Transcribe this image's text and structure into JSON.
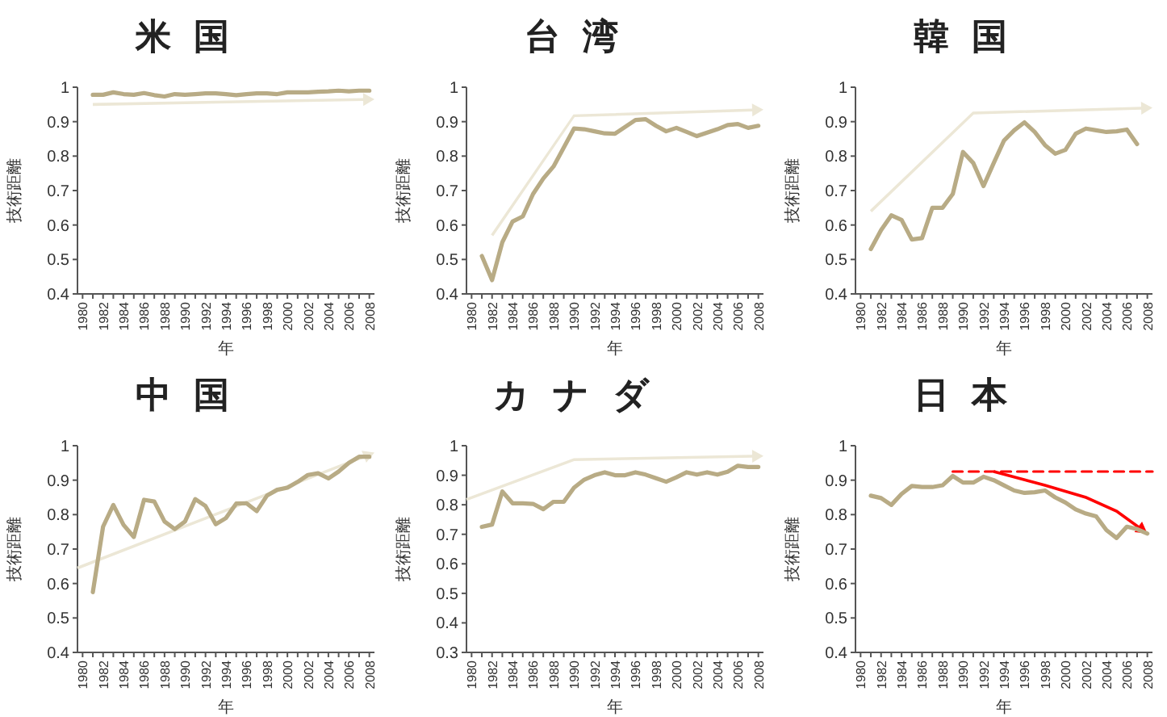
{
  "chart_data": [
    {
      "type": "line",
      "title": "米国",
      "xlabel": "年",
      "ylabel": "技術距離",
      "xlim": [
        1979.5,
        2008.5
      ],
      "ylim": [
        0.4,
        1
      ],
      "yticks": [
        0.4,
        0.5,
        0.6,
        0.7,
        0.8,
        0.9,
        1
      ],
      "xticks": [
        1980,
        {
          "value": 1981,
          "label": null
        },
        1982,
        {
          "value": 1983,
          "label": null
        },
        1984,
        {
          "value": 1985,
          "label": null
        },
        1986,
        {
          "value": 1987,
          "label": null
        },
        1988,
        {
          "value": 1989,
          "label": null
        },
        1990,
        {
          "value": 1991,
          "label": null
        },
        1992,
        {
          "value": 1993,
          "label": null
        },
        1994,
        {
          "value": 1995,
          "label": null
        },
        1996,
        {
          "value": 1997,
          "label": null
        },
        1998,
        {
          "value": 1999,
          "label": null
        },
        2000,
        {
          "value": 2001,
          "label": null
        },
        2002,
        {
          "value": 2003,
          "label": null
        },
        2004,
        {
          "value": 2005,
          "label": null
        },
        2006,
        {
          "value": 2007,
          "label": null
        },
        2008
      ],
      "x": [
        1981,
        1982,
        1983,
        1984,
        1985,
        1986,
        1987,
        1988,
        1989,
        1990,
        1991,
        1992,
        1993,
        1994,
        1995,
        1996,
        1997,
        1998,
        1999,
        2000,
        2001,
        2002,
        2003,
        2004,
        2005,
        2006,
        2007,
        2008
      ],
      "series": [
        {
          "color": "#b8ab85",
          "values": [
            0.978,
            0.978,
            0.985,
            0.98,
            0.978,
            0.983,
            0.977,
            0.973,
            0.98,
            0.978,
            0.98,
            0.982,
            0.982,
            0.98,
            0.977,
            0.98,
            0.982,
            0.982,
            0.98,
            0.985,
            0.985,
            0.985,
            0.987,
            0.988,
            0.99,
            0.988,
            0.99,
            0.99
          ]
        }
      ]
    },
    {
      "type": "line",
      "title": "台湾",
      "xlabel": "年",
      "ylabel": "技術距離",
      "xlim": [
        1979.5,
        2008.5
      ],
      "ylim": [
        0.4,
        1
      ],
      "yticks": [
        0.4,
        0.5,
        0.6,
        0.7,
        0.8,
        0.9,
        1
      ],
      "xticks": [
        1980,
        {
          "value": 1981,
          "label": null
        },
        1982,
        {
          "value": 1983,
          "label": null
        },
        1984,
        {
          "value": 1985,
          "label": null
        },
        1986,
        {
          "value": 1987,
          "label": null
        },
        1988,
        {
          "value": 1989,
          "label": null
        },
        1990,
        {
          "value": 1991,
          "label": null
        },
        1992,
        {
          "value": 1993,
          "label": null
        },
        1994,
        {
          "value": 1995,
          "label": null
        },
        1996,
        {
          "value": 1997,
          "label": null
        },
        1998,
        {
          "value": 1999,
          "label": null
        },
        2000,
        {
          "value": 2001,
          "label": null
        },
        2002,
        {
          "value": 2003,
          "label": null
        },
        2004,
        {
          "value": 2005,
          "label": null
        },
        2006,
        {
          "value": 2007,
          "label": null
        },
        2008
      ],
      "x": [
        1981,
        1982,
        1983,
        1984,
        1985,
        1986,
        1987,
        1988,
        1989,
        1990,
        1991,
        1992,
        1993,
        1994,
        1995,
        1996,
        1997,
        1998,
        1999,
        2000,
        2001,
        2002,
        2003,
        2004,
        2005,
        2006,
        2007,
        2008
      ],
      "series": [
        {
          "color": "#b8ab85",
          "values": [
            0.51,
            0.44,
            0.55,
            0.61,
            0.625,
            0.69,
            0.735,
            0.77,
            0.825,
            0.88,
            0.878,
            0.872,
            0.866,
            0.865,
            0.885,
            0.905,
            0.907,
            0.888,
            0.872,
            0.882,
            0.87,
            0.858,
            0.868,
            0.878,
            0.89,
            0.893,
            0.882,
            0.888
          ]
        }
      ]
    },
    {
      "type": "line",
      "title": "韓国",
      "xlabel": "年",
      "ylabel": "技術距離",
      "xlim": [
        1979.5,
        2008.5
      ],
      "ylim": [
        0.4,
        1
      ],
      "yticks": [
        0.4,
        0.5,
        0.6,
        0.7,
        0.8,
        0.9,
        1
      ],
      "xticks": [
        1980,
        {
          "value": 1981,
          "label": null
        },
        1982,
        {
          "value": 1983,
          "label": null
        },
        1984,
        {
          "value": 1985,
          "label": null
        },
        1986,
        {
          "value": 1987,
          "label": null
        },
        1988,
        {
          "value": 1989,
          "label": null
        },
        1990,
        {
          "value": 1991,
          "label": null
        },
        1992,
        {
          "value": 1993,
          "label": null
        },
        1994,
        {
          "value": 1995,
          "label": null
        },
        1996,
        {
          "value": 1997,
          "label": null
        },
        1998,
        {
          "value": 1999,
          "label": null
        },
        2000,
        {
          "value": 2001,
          "label": null
        },
        2002,
        {
          "value": 2003,
          "label": null
        },
        2004,
        {
          "value": 2005,
          "label": null
        },
        2006,
        {
          "value": 2007,
          "label": null
        },
        2008
      ],
      "x": [
        1981,
        1982,
        1983,
        1984,
        1985,
        1986,
        1987,
        1988,
        1989,
        1990,
        1991,
        1992,
        1993,
        1994,
        1995,
        1996,
        1997,
        1998,
        1999,
        2000,
        2001,
        2002,
        2003,
        2004,
        2005,
        2006,
        2007
      ],
      "series": [
        {
          "color": "#b8ab85",
          "values": [
            0.53,
            0.585,
            0.628,
            0.615,
            0.558,
            0.562,
            0.65,
            0.65,
            0.69,
            0.812,
            0.78,
            0.713,
            0.78,
            0.845,
            0.875,
            0.898,
            0.87,
            0.832,
            0.807,
            0.818,
            0.865,
            0.88,
            0.875,
            0.87,
            0.872,
            0.877,
            0.835
          ]
        }
      ]
    },
    {
      "type": "line",
      "title": "中国",
      "xlabel": "年",
      "ylabel": "技術距離",
      "xlim": [
        1979.5,
        2008.5
      ],
      "ylim": [
        0.4,
        1
      ],
      "yticks": [
        0.4,
        0.5,
        0.6,
        0.7,
        0.8,
        0.9,
        1
      ],
      "xticks": [
        1980,
        {
          "value": 1981,
          "label": null
        },
        1982,
        {
          "value": 1983,
          "label": null
        },
        1984,
        {
          "value": 1985,
          "label": null
        },
        1986,
        {
          "value": 1987,
          "label": null
        },
        1988,
        {
          "value": 1989,
          "label": null
        },
        1990,
        {
          "value": 1991,
          "label": null
        },
        1992,
        {
          "value": 1993,
          "label": null
        },
        1994,
        {
          "value": 1995,
          "label": null
        },
        1996,
        {
          "value": 1997,
          "label": null
        },
        1998,
        {
          "value": 1999,
          "label": null
        },
        2000,
        {
          "value": 2001,
          "label": null
        },
        2002,
        {
          "value": 2003,
          "label": null
        },
        2004,
        {
          "value": 2005,
          "label": null
        },
        2006,
        {
          "value": 2007,
          "label": null
        },
        2008
      ],
      "x": [
        1981,
        1982,
        1983,
        1984,
        1985,
        1986,
        1987,
        1988,
        1989,
        1990,
        1991,
        1992,
        1993,
        1994,
        1995,
        1996,
        1997,
        1998,
        1999,
        2000,
        2001,
        2002,
        2003,
        2004,
        2005,
        2006,
        2007,
        2008
      ],
      "series": [
        {
          "color": "#b8ab85",
          "values": [
            0.575,
            0.765,
            0.828,
            0.77,
            0.735,
            0.843,
            0.838,
            0.78,
            0.758,
            0.78,
            0.845,
            0.825,
            0.772,
            0.79,
            0.832,
            0.833,
            0.81,
            0.855,
            0.872,
            0.878,
            0.895,
            0.915,
            0.92,
            0.905,
            0.925,
            0.95,
            0.968,
            0.968
          ]
        }
      ]
    },
    {
      "type": "line",
      "title": "カナダ",
      "xlabel": "年",
      "ylabel": "技術距離",
      "xlim": [
        1979.5,
        2008.5
      ],
      "ylim": [
        0.3,
        1
      ],
      "yticks": [
        0.3,
        0.4,
        0.5,
        0.6,
        0.7,
        0.8,
        0.9,
        1
      ],
      "xticks": [
        1980,
        {
          "value": 1981,
          "label": null
        },
        1982,
        {
          "value": 1983,
          "label": null
        },
        1984,
        {
          "value": 1985,
          "label": null
        },
        1986,
        {
          "value": 1987,
          "label": null
        },
        1988,
        {
          "value": 1989,
          "label": null
        },
        1990,
        {
          "value": 1991,
          "label": null
        },
        1992,
        {
          "value": 1993,
          "label": null
        },
        1994,
        {
          "value": 1995,
          "label": null
        },
        1996,
        {
          "value": 1997,
          "label": null
        },
        1998,
        {
          "value": 1999,
          "label": null
        },
        2000,
        {
          "value": 2001,
          "label": null
        },
        2002,
        {
          "value": 2003,
          "label": null
        },
        2004,
        {
          "value": 2005,
          "label": null
        },
        2006,
        {
          "value": 2007,
          "label": null
        },
        2008
      ],
      "x": [
        1981,
        1982,
        1983,
        1984,
        1985,
        1986,
        1987,
        1988,
        1989,
        1990,
        1991,
        1992,
        1993,
        1994,
        1995,
        1996,
        1997,
        1998,
        1999,
        2000,
        2001,
        2002,
        2003,
        2004,
        2005,
        2006,
        2007,
        2008
      ],
      "series": [
        {
          "color": "#b8ab85",
          "values": [
            0.725,
            0.733,
            0.845,
            0.805,
            0.805,
            0.803,
            0.785,
            0.81,
            0.81,
            0.858,
            0.885,
            0.9,
            0.91,
            0.9,
            0.9,
            0.91,
            0.902,
            0.89,
            0.878,
            0.893,
            0.91,
            0.902,
            0.91,
            0.902,
            0.912,
            0.932,
            0.928,
            0.928
          ]
        }
      ]
    },
    {
      "type": "line",
      "title": "日本",
      "xlabel": "年",
      "ylabel": "技術距離",
      "xlim": [
        1979.5,
        2008.5
      ],
      "ylim": [
        0.4,
        1
      ],
      "yticks": [
        0.4,
        0.5,
        0.6,
        0.7,
        0.8,
        0.9,
        1
      ],
      "xticks": [
        1980,
        {
          "value": 1981,
          "label": null
        },
        1982,
        {
          "value": 1983,
          "label": null
        },
        1984,
        {
          "value": 1985,
          "label": null
        },
        1986,
        {
          "value": 1987,
          "label": null
        },
        1988,
        {
          "value": 1989,
          "label": null
        },
        1990,
        {
          "value": 1991,
          "label": null
        },
        1992,
        {
          "value": 1993,
          "label": null
        },
        1994,
        {
          "value": 1995,
          "label": null
        },
        1996,
        {
          "value": 1997,
          "label": null
        },
        1998,
        {
          "value": 1999,
          "label": null
        },
        2000,
        {
          "value": 2001,
          "label": null
        },
        2002,
        {
          "value": 2003,
          "label": null
        },
        2004,
        {
          "value": 2005,
          "label": null
        },
        2006,
        {
          "value": 2007,
          "label": null
        },
        2008
      ],
      "x": [
        1981,
        1982,
        1983,
        1984,
        1985,
        1986,
        1987,
        1988,
        1989,
        1990,
        1991,
        1992,
        1993,
        1994,
        1995,
        1996,
        1997,
        1998,
        1999,
        2000,
        2001,
        2002,
        2003,
        2004,
        2005,
        2006,
        2007,
        2008
      ],
      "series": [
        {
          "color": "#b8ab85",
          "values": [
            0.855,
            0.848,
            0.828,
            0.86,
            0.883,
            0.88,
            0.88,
            0.885,
            0.912,
            0.893,
            0.893,
            0.91,
            0.9,
            0.885,
            0.87,
            0.863,
            0.865,
            0.87,
            0.85,
            0.835,
            0.815,
            0.803,
            0.795,
            0.755,
            0.732,
            0.765,
            0.758,
            0.745
          ]
        },
        {
          "type": "line",
          "color": "#ff0000",
          "line_style": "dashed",
          "x": [
            1989,
            2008.5
          ],
          "values": [
            0.925,
            0.925
          ]
        }
      ]
    }
  ]
}
